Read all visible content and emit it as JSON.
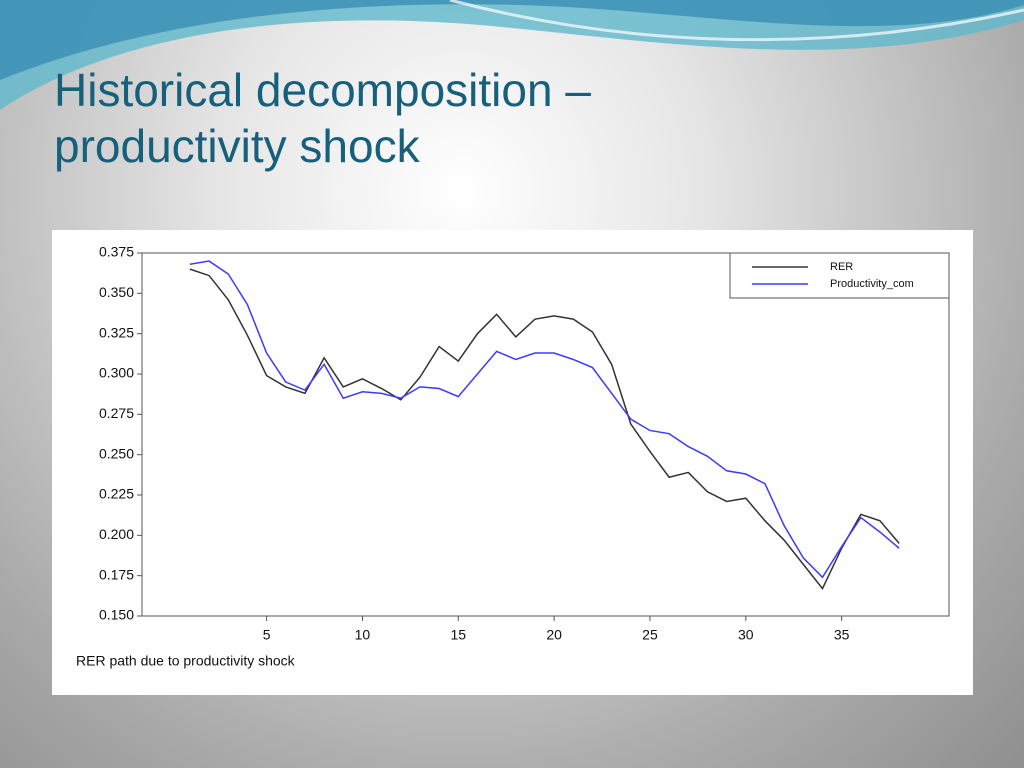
{
  "slide_title": "Historical decomposition – productivity shock",
  "chart_data": {
    "type": "line",
    "xlabel": "RER path due to productivity shock",
    "x": [
      1,
      2,
      3,
      4,
      5,
      6,
      7,
      8,
      9,
      10,
      11,
      12,
      13,
      14,
      15,
      16,
      17,
      18,
      19,
      20,
      21,
      22,
      23,
      24,
      25,
      26,
      27,
      28,
      29,
      30,
      31,
      32,
      33,
      34,
      35,
      36,
      37,
      38
    ],
    "series": [
      {
        "name": "RER",
        "color": "#333333",
        "values": [
          0.365,
          0.361,
          0.346,
          0.324,
          0.299,
          0.292,
          0.288,
          0.31,
          0.292,
          0.297,
          0.291,
          0.284,
          0.298,
          0.317,
          0.308,
          0.325,
          0.337,
          0.323,
          0.334,
          0.336,
          0.334,
          0.326,
          0.306,
          0.269,
          0.252,
          0.236,
          0.239,
          0.227,
          0.221,
          0.223,
          0.209,
          0.197,
          0.182,
          0.167,
          0.192,
          0.213,
          0.209,
          0.195
        ]
      },
      {
        "name": "Productivity_com",
        "color": "#3b3bff",
        "values": [
          0.368,
          0.37,
          0.362,
          0.343,
          0.313,
          0.295,
          0.29,
          0.306,
          0.285,
          0.289,
          0.288,
          0.285,
          0.292,
          0.291,
          0.286,
          0.3,
          0.314,
          0.309,
          0.313,
          0.313,
          0.309,
          0.304,
          0.288,
          0.272,
          0.265,
          0.263,
          0.255,
          0.249,
          0.24,
          0.238,
          0.232,
          0.206,
          0.186,
          0.174,
          0.193,
          0.211,
          0.202,
          0.192
        ]
      }
    ],
    "xlim": [
      -1.5,
      40.6
    ],
    "xticks": [
      5,
      10,
      15,
      20,
      25,
      30,
      35
    ],
    "ylim": [
      0.15,
      0.375
    ],
    "yticks": [
      {
        "value": 0.15,
        "label": "0.150"
      },
      0.175,
      {
        "value": 0.2,
        "label": "0.200"
      },
      0.225,
      {
        "value": 0.25,
        "label": "0.250"
      },
      0.275,
      {
        "value": 0.3,
        "label": "0.300"
      },
      0.325,
      {
        "value": 0.35,
        "label": "0.350"
      },
      0.375
    ],
    "legend": "top-right"
  }
}
